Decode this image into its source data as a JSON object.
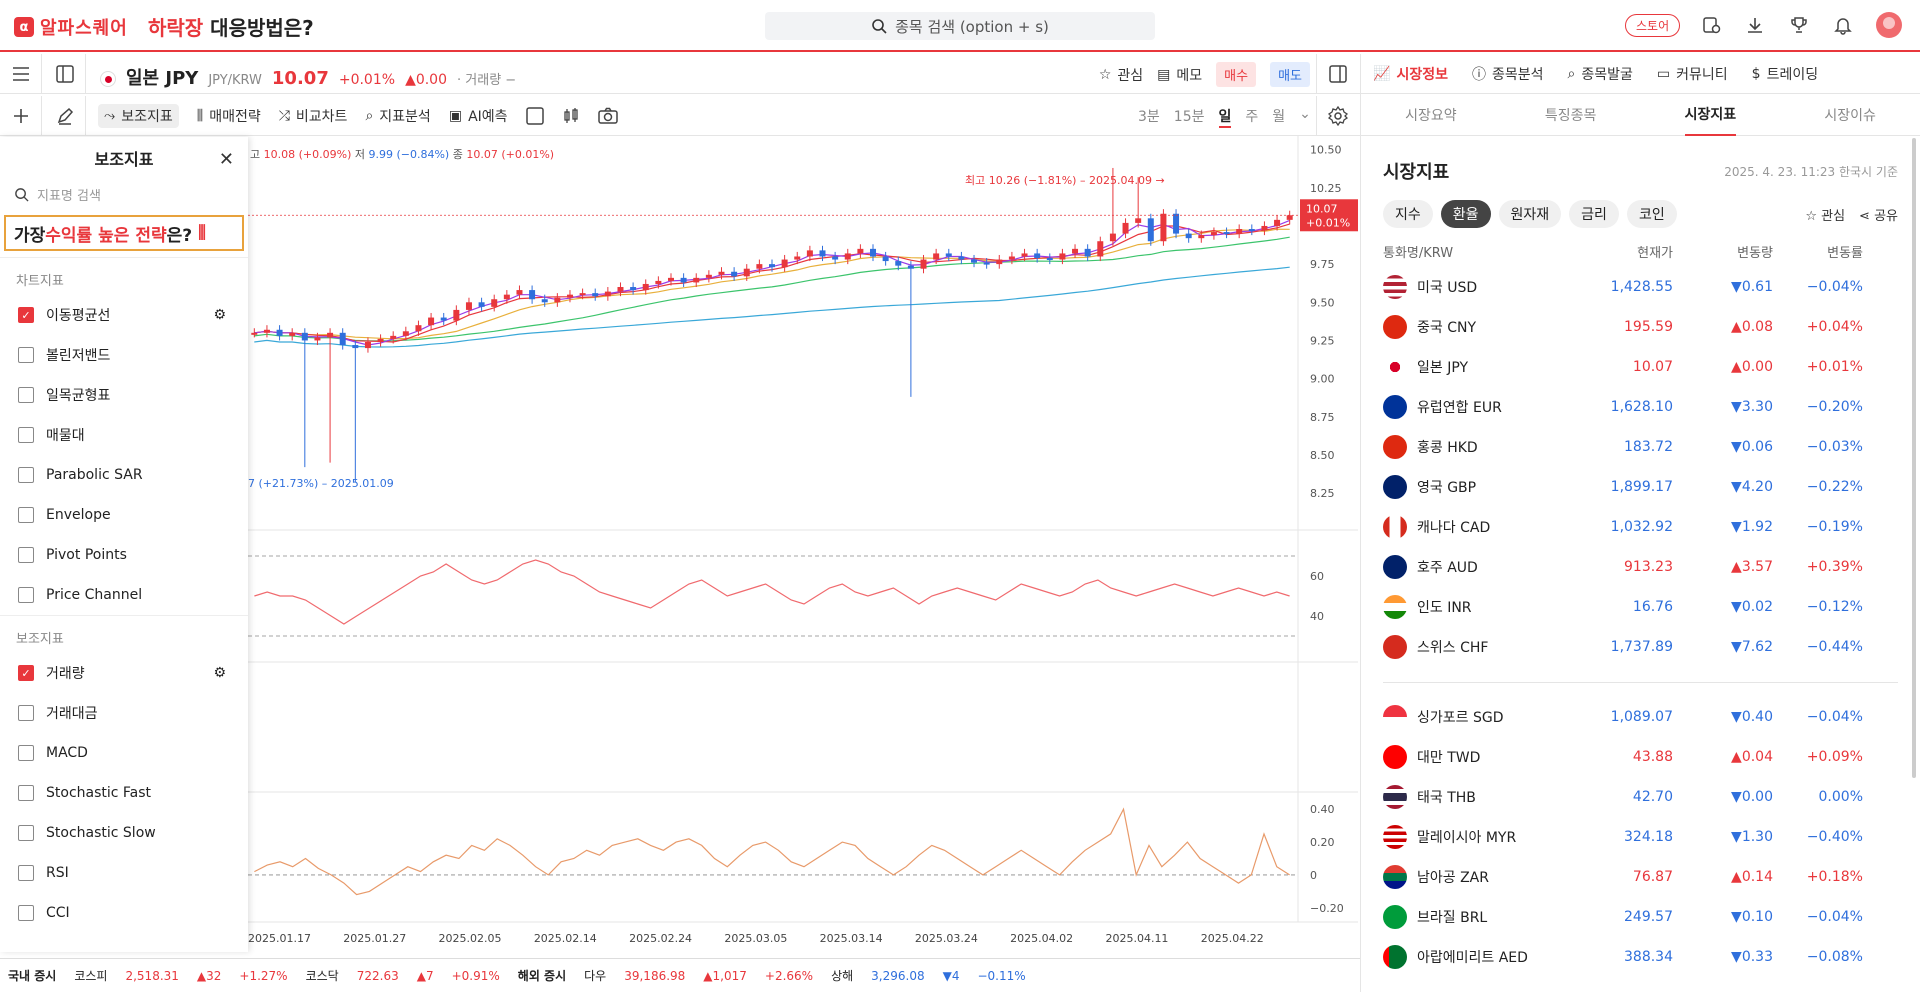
{
  "brand": {
    "name": "알파스퀘어",
    "promo_red": "하락장",
    "promo_rest": " 대응방법은?"
  },
  "search": {
    "placeholder": "종목 검색 (option + s)"
  },
  "header": {
    "store": "스토어"
  },
  "symbol": {
    "name": "일본 JPY",
    "pair": "JPY/KRW",
    "price": "10.07",
    "change_pct": "+0.01%",
    "change": "▲0.00",
    "volume": "· 거래량 −"
  },
  "symbol_actions": {
    "watch": "관심",
    "memo": "메모",
    "buy": "매수",
    "sell": "매도"
  },
  "toolbar": {
    "indicators": "보조지표",
    "strategy": "매매전략",
    "compare": "비교차트",
    "analysis": "지표분석",
    "ai": "AI예측"
  },
  "periods": [
    "3분",
    "15분",
    "일",
    "주",
    "월"
  ],
  "chart_info": {
    "high_label": "고",
    "high": "10.08 (+0.09%)",
    "low_label": "저",
    "low": "9.99 (−0.84%)",
    "close_label": "종",
    "close": "10.07 (+0.01%)",
    "max_note": "최고 10.26 (−1.81%) – 2025.04.09 →",
    "min_note": "7 (+21.73%) – 2025.01.09",
    "price_tag": "10.07",
    "price_tag_pct": "+0.01%"
  },
  "chart_data": {
    "type": "line",
    "title": "",
    "x_ticks": [
      "2025.01.17",
      "2025.01.27",
      "2025.02.05",
      "2025.02.14",
      "2025.02.24",
      "2025.03.05",
      "2025.03.14",
      "2025.03.24",
      "2025.04.02",
      "2025.04.11",
      "2025.04.22"
    ],
    "price_ticks": [
      "10.50",
      "10.25",
      "10.00",
      "9.75",
      "9.50",
      "9.25",
      "9.00",
      "8.75",
      "8.50",
      "8.25"
    ],
    "ylim": [
      8.1,
      10.55
    ],
    "close": [
      9.3,
      9.32,
      9.28,
      9.3,
      9.25,
      9.27,
      9.3,
      9.22,
      9.2,
      9.24,
      9.26,
      9.28,
      9.31,
      9.35,
      9.4,
      9.38,
      9.45,
      9.5,
      9.47,
      9.52,
      9.55,
      9.58,
      9.52,
      9.5,
      9.53,
      9.55,
      9.56,
      9.54,
      9.57,
      9.6,
      9.58,
      9.62,
      9.64,
      9.66,
      9.63,
      9.66,
      9.68,
      9.7,
      9.67,
      9.72,
      9.75,
      9.73,
      9.78,
      9.8,
      9.84,
      9.8,
      9.78,
      9.82,
      9.85,
      9.8,
      9.77,
      9.74,
      9.72,
      9.78,
      9.82,
      9.8,
      9.78,
      9.76,
      9.75,
      9.78,
      9.8,
      9.82,
      9.79,
      9.78,
      9.82,
      9.85,
      9.8,
      9.9,
      9.95,
      10.02,
      10.05,
      9.9,
      10.08,
      9.95,
      9.92,
      9.94,
      9.96,
      9.95,
      9.98,
      9.97,
      10.0,
      10.04,
      10.07
    ],
    "wicks": [
      {
        "i": 4,
        "low": 8.42
      },
      {
        "i": 6,
        "low": 8.45
      },
      {
        "i": 8,
        "low": 8.32
      },
      {
        "i": 52,
        "low": 8.88
      },
      {
        "i": 68,
        "high": 10.38
      },
      {
        "i": 70,
        "high": 10.32
      }
    ],
    "rsi_ticks": [
      "60",
      "40"
    ],
    "rsi": [
      50,
      52,
      50,
      50,
      48,
      44,
      40,
      36,
      40,
      44,
      48,
      52,
      56,
      60,
      62,
      66,
      62,
      58,
      56,
      58,
      62,
      66,
      68,
      66,
      62,
      60,
      56,
      52,
      50,
      48,
      46,
      44,
      48,
      52,
      56,
      58,
      54,
      50,
      52,
      54,
      56,
      52,
      48,
      46,
      50,
      54,
      56,
      52,
      50,
      52,
      54,
      50,
      46,
      50,
      52,
      54,
      52,
      50,
      48,
      52,
      56,
      54,
      52,
      50,
      52,
      56,
      58,
      54,
      52,
      50,
      52,
      54,
      56,
      54,
      52,
      50,
      52,
      54,
      52,
      50,
      52,
      50
    ],
    "osc_ticks": [
      "0.40",
      "0.20",
      "0",
      "−0.20"
    ],
    "osc": [
      0.02,
      0.06,
      0.08,
      0.05,
      0.1,
      0.04,
      0.0,
      -0.05,
      -0.12,
      -0.1,
      -0.05,
      0.0,
      0.05,
      0.02,
      0.08,
      0.12,
      0.1,
      0.18,
      0.15,
      0.22,
      0.18,
      0.12,
      0.05,
      0.0,
      0.08,
      0.1,
      0.15,
      0.12,
      0.18,
      0.2,
      0.22,
      0.18,
      0.15,
      0.2,
      0.22,
      0.18,
      0.1,
      0.05,
      0.12,
      0.18,
      0.2,
      0.15,
      0.08,
      0.05,
      0.1,
      0.15,
      0.2,
      0.18,
      0.1,
      0.05,
      0.0,
      0.05,
      0.12,
      0.18,
      0.15,
      0.1,
      0.05,
      0.0,
      0.05,
      0.1,
      0.15,
      0.1,
      0.05,
      0.0,
      0.08,
      0.15,
      0.2,
      0.25,
      0.4,
      0.0,
      0.18,
      0.05,
      0.12,
      0.2,
      0.1,
      0.05,
      0.0,
      -0.05,
      0.0,
      0.25,
      0.05,
      0.0
    ]
  },
  "side_panel": {
    "title": "보조지표",
    "search_placeholder": "지표명 검색",
    "banner_a": "가장 ",
    "banner_red": "수익률 높은 전략",
    "banner_b": "은?",
    "section_chart": "차트지표",
    "chart_items": [
      {
        "label": "이동평균선",
        "checked": true
      },
      {
        "label": "볼린저밴드",
        "checked": false
      },
      {
        "label": "일목균형표",
        "checked": false
      },
      {
        "label": "매물대",
        "checked": false
      },
      {
        "label": "Parabolic SAR",
        "checked": false
      },
      {
        "label": "Envelope",
        "checked": false
      },
      {
        "label": "Pivot Points",
        "checked": false
      },
      {
        "label": "Price Channel",
        "checked": false
      }
    ],
    "section_sub": "보조지표",
    "sub_items": [
      {
        "label": "거래량",
        "checked": true
      },
      {
        "label": "거래대금",
        "checked": false
      },
      {
        "label": "MACD",
        "checked": false
      },
      {
        "label": "Stochastic Fast",
        "checked": false
      },
      {
        "label": "Stochastic Slow",
        "checked": false
      },
      {
        "label": "RSI",
        "checked": false
      },
      {
        "label": "CCI",
        "checked": false
      }
    ]
  },
  "ticker": {
    "domestic": "국내 증시",
    "kospi": "코스피",
    "kospi_val": "2,518.31",
    "kospi_chg": "▲32",
    "kospi_pct": "+1.27%",
    "kosdaq": "코스닥",
    "kosdaq_val": "722.63",
    "kosdaq_chg": "▲7",
    "kosdaq_pct": "+0.91%",
    "overseas": "해외 증시",
    "dow": "다우",
    "dow_val": "39,186.98",
    "dow_chg": "▲1,017",
    "dow_pct": "+2.66%",
    "sh": "상해",
    "sh_val": "3,296.08",
    "sh_chg": "▼4",
    "sh_pct": "−0.11%"
  },
  "right_tabs": [
    "시장정보",
    "종목분석",
    "종목발굴",
    "커뮤니티",
    "트레이딩"
  ],
  "right_subtabs": [
    "시장요약",
    "특징종목",
    "시장지표",
    "시장이슈"
  ],
  "market": {
    "title": "시장지표",
    "date": "2025. 4. 23. 11:23 한국시 기준",
    "chips": [
      "지수",
      "환율",
      "원자재",
      "금리",
      "코인"
    ],
    "watch": "관심",
    "share": "공유",
    "columns": [
      "통화명/KRW",
      "현재가",
      "변동량",
      "변동률"
    ],
    "group1": [
      {
        "name": "미국 USD",
        "price": "1,428.55",
        "chg": "▼0.61",
        "pct": "−0.04%",
        "dir": "down",
        "flag": "us"
      },
      {
        "name": "중국 CNY",
        "price": "195.59",
        "chg": "▲0.08",
        "pct": "+0.04%",
        "dir": "up",
        "flag": "cn"
      },
      {
        "name": "일본 JPY",
        "price": "10.07",
        "chg": "▲0.00",
        "pct": "+0.01%",
        "dir": "up",
        "flag": "jp"
      },
      {
        "name": "유럽연합 EUR",
        "price": "1,628.10",
        "chg": "▼3.30",
        "pct": "−0.20%",
        "dir": "down",
        "flag": "eu"
      },
      {
        "name": "홍콩 HKD",
        "price": "183.72",
        "chg": "▼0.06",
        "pct": "−0.03%",
        "dir": "down",
        "flag": "hk"
      },
      {
        "name": "영국 GBP",
        "price": "1,899.17",
        "chg": "▼4.20",
        "pct": "−0.22%",
        "dir": "down",
        "flag": "gb"
      },
      {
        "name": "캐나다 CAD",
        "price": "1,032.92",
        "chg": "▼1.92",
        "pct": "−0.19%",
        "dir": "down",
        "flag": "ca"
      },
      {
        "name": "호주 AUD",
        "price": "913.23",
        "chg": "▲3.57",
        "pct": "+0.39%",
        "dir": "up",
        "flag": "au"
      },
      {
        "name": "인도 INR",
        "price": "16.76",
        "chg": "▼0.02",
        "pct": "−0.12%",
        "dir": "down",
        "flag": "in"
      },
      {
        "name": "스위스 CHF",
        "price": "1,737.89",
        "chg": "▼7.62",
        "pct": "−0.44%",
        "dir": "down",
        "flag": "ch"
      }
    ],
    "group2": [
      {
        "name": "싱가포르 SGD",
        "price": "1,089.07",
        "chg": "▼0.40",
        "pct": "−0.04%",
        "dir": "down",
        "flag": "sg"
      },
      {
        "name": "대만 TWD",
        "price": "43.88",
        "chg": "▲0.04",
        "pct": "+0.09%",
        "dir": "up",
        "flag": "tw"
      },
      {
        "name": "태국 THB",
        "price": "42.70",
        "chg": "▼0.00",
        "pct": "0.00%",
        "dir": "down",
        "flag": "th"
      },
      {
        "name": "말레이시아 MYR",
        "price": "324.18",
        "chg": "▼1.30",
        "pct": "−0.40%",
        "dir": "down",
        "flag": "my"
      },
      {
        "name": "남아공 ZAR",
        "price": "76.87",
        "chg": "▲0.14",
        "pct": "+0.18%",
        "dir": "up",
        "flag": "za"
      },
      {
        "name": "브라질 BRL",
        "price": "249.57",
        "chg": "▼0.10",
        "pct": "−0.04%",
        "dir": "down",
        "flag": "br"
      },
      {
        "name": "아랍에미리트 AED",
        "price": "388.34",
        "chg": "▼0.33",
        "pct": "−0.08%",
        "dir": "down",
        "flag": "ae"
      }
    ]
  }
}
